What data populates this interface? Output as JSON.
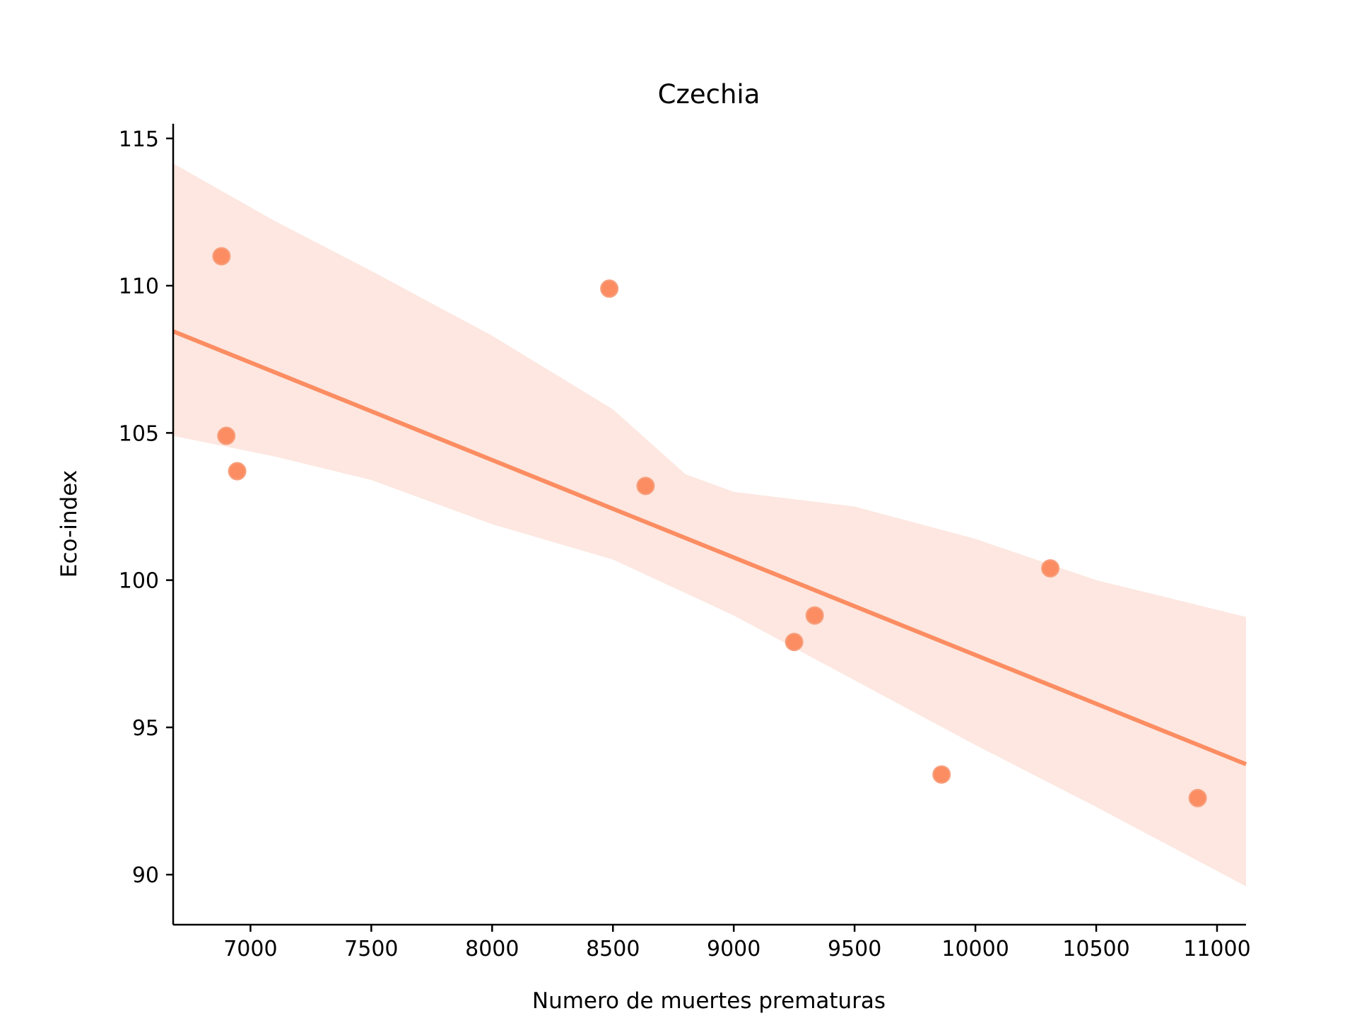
{
  "chart_data": {
    "type": "scatter",
    "title": "Czechia",
    "xlabel": "Numero de muertes prematuras",
    "ylabel": "Eco-index",
    "xlim": [
      6680,
      11120
    ],
    "ylim": [
      88.3,
      115.5
    ],
    "xticks": [
      7000,
      7500,
      8000,
      8500,
      9000,
      9500,
      10000,
      10500,
      11000
    ],
    "yticks": [
      90,
      95,
      100,
      105,
      110,
      115
    ],
    "grid": false,
    "points": [
      {
        "x": 6880,
        "y": 111.0
      },
      {
        "x": 6900,
        "y": 104.9
      },
      {
        "x": 6945,
        "y": 103.7
      },
      {
        "x": 8485,
        "y": 109.9
      },
      {
        "x": 8635,
        "y": 103.2
      },
      {
        "x": 9250,
        "y": 97.9
      },
      {
        "x": 9335,
        "y": 98.8
      },
      {
        "x": 9860,
        "y": 93.4
      },
      {
        "x": 10310,
        "y": 100.4
      },
      {
        "x": 10920,
        "y": 92.6
      }
    ],
    "regression": {
      "line": [
        {
          "x": 6680,
          "y": 108.45
        },
        {
          "x": 11120,
          "y": 93.75
        }
      ],
      "ci_upper": [
        {
          "x": 6680,
          "y": 114.15
        },
        {
          "x": 7100,
          "y": 112.2
        },
        {
          "x": 7500,
          "y": 110.5
        },
        {
          "x": 8000,
          "y": 108.3
        },
        {
          "x": 8500,
          "y": 105.8
        },
        {
          "x": 8800,
          "y": 103.6
        },
        {
          "x": 9000,
          "y": 103.0
        },
        {
          "x": 9500,
          "y": 102.5
        },
        {
          "x": 10000,
          "y": 101.4
        },
        {
          "x": 10500,
          "y": 100.0
        },
        {
          "x": 11120,
          "y": 98.75
        }
      ],
      "ci_lower": [
        {
          "x": 6680,
          "y": 104.9
        },
        {
          "x": 7100,
          "y": 104.2
        },
        {
          "x": 7500,
          "y": 103.4
        },
        {
          "x": 8000,
          "y": 101.9
        },
        {
          "x": 8500,
          "y": 100.7
        },
        {
          "x": 9000,
          "y": 98.8
        },
        {
          "x": 9500,
          "y": 96.6
        },
        {
          "x": 10000,
          "y": 94.4
        },
        {
          "x": 10500,
          "y": 92.3
        },
        {
          "x": 11120,
          "y": 89.6
        }
      ]
    },
    "colors": {
      "point": "#FC8D62",
      "line": "#FC8D62",
      "band": "#FDE7E0"
    }
  }
}
